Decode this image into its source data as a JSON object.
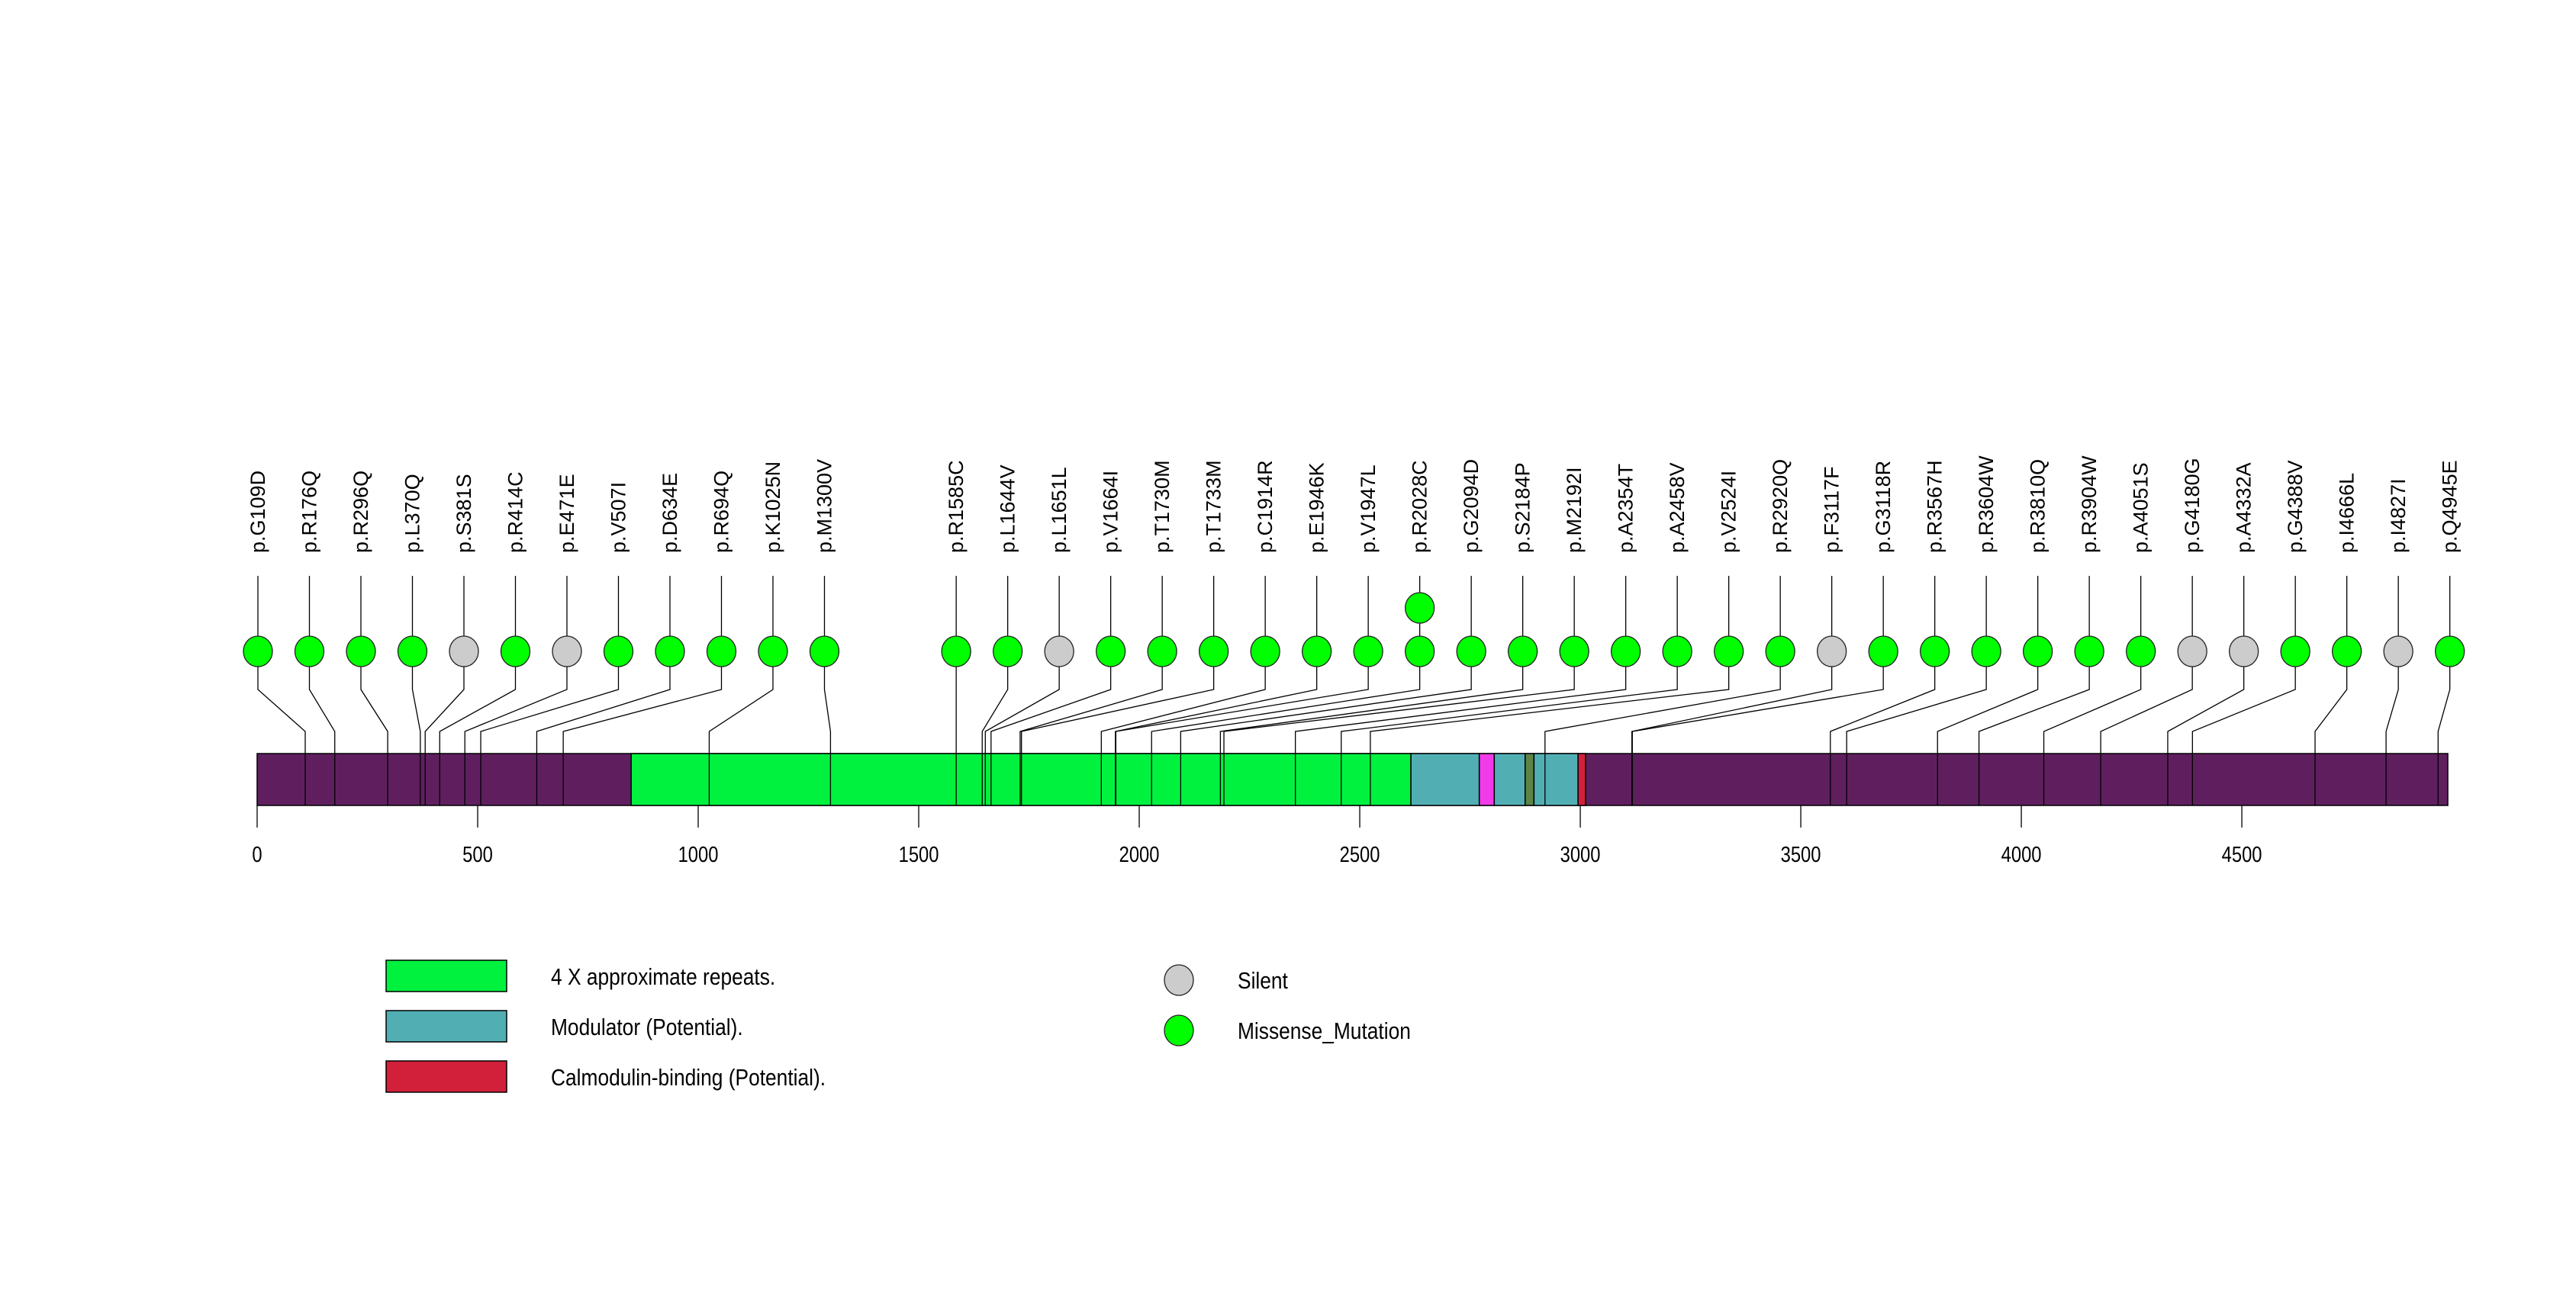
{
  "chart_data": {
    "type": "lollipop",
    "title": "",
    "xlabel": "",
    "ylabel": "",
    "protein_length": 4967,
    "xlim": [
      0,
      4967
    ],
    "x_ticks": [
      0,
      500,
      1000,
      1500,
      2000,
      2500,
      3000,
      3500,
      4000,
      4500
    ],
    "backbone_color": "#5f1f5f",
    "domains": [
      {
        "name": "4 X approximate repeats.",
        "start": 848,
        "end": 2616,
        "color": "#00f23f"
      },
      {
        "name": "Modulator (Potential).",
        "start": 2616,
        "end": 2771,
        "color": "#51afb4"
      },
      {
        "name": "",
        "start": 2771,
        "end": 2805,
        "color": "#f23be8"
      },
      {
        "name": "Modulator (Potential).",
        "start": 2805,
        "end": 2875,
        "color": "#51afb4"
      },
      {
        "name": "",
        "start": 2875,
        "end": 2895,
        "color": "#5d8447"
      },
      {
        "name": "Modulator (Potential).",
        "start": 2895,
        "end": 2995,
        "color": "#51afb4"
      },
      {
        "name": "Calmodulin-binding (Potential).",
        "start": 2995,
        "end": 3012,
        "color": "#d2203b"
      }
    ],
    "mutation_types": {
      "Silent": "#cccccc",
      "Missense_Mutation": "#00ff00"
    },
    "mutations": [
      {
        "label": "p.G109D",
        "position": 109,
        "type": "Missense_Mutation",
        "count": 1
      },
      {
        "label": "p.R176Q",
        "position": 176,
        "type": "Missense_Mutation",
        "count": 1
      },
      {
        "label": "p.R296Q",
        "position": 296,
        "type": "Missense_Mutation",
        "count": 1
      },
      {
        "label": "p.L370Q",
        "position": 370,
        "type": "Missense_Mutation",
        "count": 1
      },
      {
        "label": "p.S381S",
        "position": 381,
        "type": "Silent",
        "count": 1
      },
      {
        "label": "p.R414C",
        "position": 414,
        "type": "Missense_Mutation",
        "count": 1
      },
      {
        "label": "p.E471E",
        "position": 471,
        "type": "Silent",
        "count": 1
      },
      {
        "label": "p.V507I",
        "position": 507,
        "type": "Missense_Mutation",
        "count": 1
      },
      {
        "label": "p.D634E",
        "position": 634,
        "type": "Missense_Mutation",
        "count": 1
      },
      {
        "label": "p.R694Q",
        "position": 694,
        "type": "Missense_Mutation",
        "count": 1
      },
      {
        "label": "p.K1025N",
        "position": 1025,
        "type": "Missense_Mutation",
        "count": 1
      },
      {
        "label": "p.M1300V",
        "position": 1300,
        "type": "Missense_Mutation",
        "count": 1
      },
      {
        "label": "p.R1585C",
        "position": 1585,
        "type": "Missense_Mutation",
        "count": 1
      },
      {
        "label": "p.L1644V",
        "position": 1644,
        "type": "Missense_Mutation",
        "count": 1
      },
      {
        "label": "p.L1651L",
        "position": 1651,
        "type": "Silent",
        "count": 1
      },
      {
        "label": "p.V1664I",
        "position": 1664,
        "type": "Missense_Mutation",
        "count": 1
      },
      {
        "label": "p.T1730M",
        "position": 1730,
        "type": "Missense_Mutation",
        "count": 1
      },
      {
        "label": "p.T1733M",
        "position": 1733,
        "type": "Missense_Mutation",
        "count": 1
      },
      {
        "label": "p.C1914R",
        "position": 1914,
        "type": "Missense_Mutation",
        "count": 1
      },
      {
        "label": "p.E1946K",
        "position": 1946,
        "type": "Missense_Mutation",
        "count": 1
      },
      {
        "label": "p.V1947L",
        "position": 1947,
        "type": "Missense_Mutation",
        "count": 1
      },
      {
        "label": "p.R2028C",
        "position": 2028,
        "type": "Missense_Mutation",
        "count": 2
      },
      {
        "label": "p.G2094D",
        "position": 2094,
        "type": "Missense_Mutation",
        "count": 1
      },
      {
        "label": "p.S2184P",
        "position": 2184,
        "type": "Missense_Mutation",
        "count": 1
      },
      {
        "label": "p.M2192I",
        "position": 2192,
        "type": "Missense_Mutation",
        "count": 1
      },
      {
        "label": "p.A2354T",
        "position": 2354,
        "type": "Missense_Mutation",
        "count": 1
      },
      {
        "label": "p.A2458V",
        "position": 2458,
        "type": "Missense_Mutation",
        "count": 1
      },
      {
        "label": "p.V2524I",
        "position": 2524,
        "type": "Missense_Mutation",
        "count": 1
      },
      {
        "label": "p.R2920Q",
        "position": 2920,
        "type": "Missense_Mutation",
        "count": 1
      },
      {
        "label": "p.F3117F",
        "position": 3117,
        "type": "Silent",
        "count": 1
      },
      {
        "label": "p.G3118R",
        "position": 3118,
        "type": "Missense_Mutation",
        "count": 1
      },
      {
        "label": "p.R3567H",
        "position": 3567,
        "type": "Missense_Mutation",
        "count": 1
      },
      {
        "label": "p.R3604W",
        "position": 3604,
        "type": "Missense_Mutation",
        "count": 1
      },
      {
        "label": "p.R3810Q",
        "position": 3810,
        "type": "Missense_Mutation",
        "count": 1
      },
      {
        "label": "p.R3904W",
        "position": 3904,
        "type": "Missense_Mutation",
        "count": 1
      },
      {
        "label": "p.A4051S",
        "position": 4051,
        "type": "Missense_Mutation",
        "count": 1
      },
      {
        "label": "p.G4180G",
        "position": 4180,
        "type": "Silent",
        "count": 1
      },
      {
        "label": "p.A4332A",
        "position": 4332,
        "type": "Silent",
        "count": 1
      },
      {
        "label": "p.G4388V",
        "position": 4388,
        "type": "Missense_Mutation",
        "count": 1
      },
      {
        "label": "p.I4666L",
        "position": 4666,
        "type": "Missense_Mutation",
        "count": 1
      },
      {
        "label": "p.I4827I",
        "position": 4827,
        "type": "Silent",
        "count": 1
      },
      {
        "label": "p.Q4945E",
        "position": 4945,
        "type": "Missense_Mutation",
        "count": 1
      }
    ],
    "legend": {
      "domains": [
        {
          "label": "4 X approximate repeats.",
          "color": "#00f23f"
        },
        {
          "label": "Modulator (Potential).",
          "color": "#51afb4"
        },
        {
          "label": "Calmodulin-binding (Potential).",
          "color": "#d2203b"
        }
      ],
      "mutation_types": [
        {
          "label": "Silent",
          "color": "#cccccc"
        },
        {
          "label": "Missense_Mutation",
          "color": "#00ff00"
        }
      ],
      "placement": "bottom-left"
    }
  }
}
